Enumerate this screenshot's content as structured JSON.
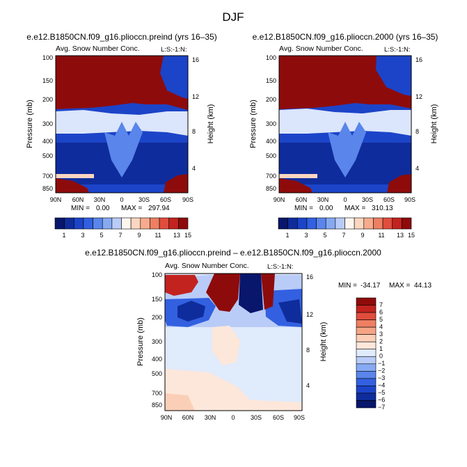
{
  "page": {
    "season": "DJF",
    "colors": {
      "abs": [
        "#08166b",
        "#0f2c9c",
        "#1c44c8",
        "#3260e0",
        "#5a85ea",
        "#86a9f2",
        "#b9ccf7",
        "#fdf6ee",
        "#fbd6c0",
        "#f6ab8d",
        "#ee7f62",
        "#e14d3c",
        "#c2231f",
        "#8e0b0b"
      ],
      "diff": [
        "#08166b",
        "#0f2c9c",
        "#1c44c8",
        "#3260e0",
        "#5a85ea",
        "#86a9f2",
        "#b9ccf7",
        "#e0ebfb",
        "#fde7da",
        "#fbcfb7",
        "#f5a585",
        "#ee7f62",
        "#e14d3c",
        "#c2231f",
        "#8e0b0b"
      ]
    }
  },
  "chart_data": [
    {
      "id": "preind",
      "type": "heatmap",
      "title": "e.e12.B1850CN.f09_g16.plioccn.preind (yrs 16–35)",
      "subtitle": "Avg. Snow Number Conc.",
      "units_label": "L:S:-1:N:",
      "x_ticks": [
        "90N",
        "60N",
        "30N",
        "0",
        "30S",
        "60S",
        "90S"
      ],
      "x_range": [
        90,
        -90
      ],
      "y_left_label": "Pressure (mb)",
      "y_left_ticks": [
        100,
        150,
        200,
        300,
        400,
        500,
        700,
        850
      ],
      "y_right_label": "Height (km)",
      "y_right_ticks": [
        16,
        12,
        8,
        4
      ],
      "min_label": "MIN =",
      "min_value": "0.00",
      "max_label": "MAX =",
      "max_value": "297.94",
      "colorbar_labels": [
        "1",
        "3",
        "5",
        "7",
        "9",
        "11",
        "13",
        "15"
      ]
    },
    {
      "id": "pd2000",
      "type": "heatmap",
      "title": "e.e12.B1850CN.f09_g16.plioccn.2000 (yrs 16–35)",
      "subtitle": "Avg. Snow Number Conc.",
      "units_label": "L:S:-1:N:",
      "x_ticks": [
        "90N",
        "60N",
        "30N",
        "0",
        "30S",
        "60S",
        "90S"
      ],
      "x_range": [
        90,
        -90
      ],
      "y_left_label": "Pressure (mb)",
      "y_left_ticks": [
        100,
        150,
        200,
        300,
        400,
        500,
        700,
        850
      ],
      "y_right_label": "Height (km)",
      "y_right_ticks": [
        16,
        12,
        8,
        4
      ],
      "min_label": "MIN =",
      "min_value": "0.00",
      "max_label": "MAX =",
      "max_value": "310.13",
      "colorbar_labels": [
        "1",
        "3",
        "5",
        "7",
        "9",
        "11",
        "13",
        "15"
      ]
    },
    {
      "id": "diff",
      "type": "heatmap",
      "title": "e.e12.B1850CN.f09_g16.plioccn.preind – e.e12.B1850CN.f09_g16.plioccn.2000",
      "subtitle": "Avg. Snow Number Conc.",
      "units_label": "L:S:-1:N:",
      "x_ticks": [
        "90N",
        "60N",
        "30N",
        "0",
        "30S",
        "60S",
        "90S"
      ],
      "x_range": [
        90,
        -90
      ],
      "y_left_label": "Pressure (mb)",
      "y_left_ticks": [
        100,
        150,
        200,
        300,
        400,
        500,
        700,
        850
      ],
      "y_right_label": "Height (km)",
      "y_right_ticks": [
        16,
        12,
        8,
        4
      ],
      "min_label": "MIN =",
      "min_value": "-34.17",
      "max_label": "MAX =",
      "max_value": "44.13",
      "colorbar_labels": [
        "7",
        "6",
        "5",
        "4",
        "3",
        "2",
        "1",
        "0",
        "−1",
        "−2",
        "−3",
        "−4",
        "−5",
        "−6",
        "−7"
      ]
    }
  ]
}
